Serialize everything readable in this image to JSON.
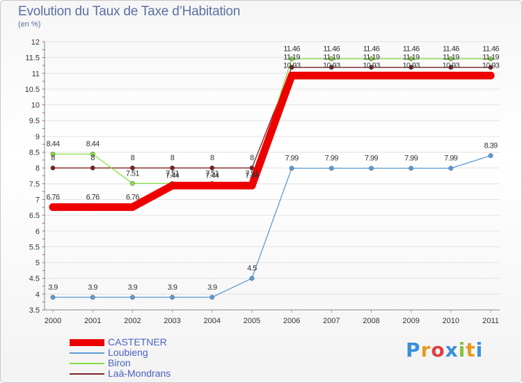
{
  "chart_data": {
    "type": "line",
    "title": "Evolution du Taux de Taxe d’Habitation",
    "subtitle": "(en %)",
    "xlabel": "",
    "ylabel": "",
    "ylim": [
      3.5,
      12
    ],
    "yticks": [
      "3.5",
      "4",
      "4.5",
      "5",
      "5.5",
      "6",
      "6.5",
      "7",
      "7.5",
      "8",
      "8.5",
      "9",
      "9.5",
      "10",
      "10.5",
      "11",
      "11.5",
      "12"
    ],
    "categories": [
      "2000",
      "2001",
      "2002",
      "2003",
      "2004",
      "2005",
      "2006",
      "2007",
      "2008",
      "2009",
      "2010",
      "2011"
    ],
    "series": [
      {
        "name": "Laà-Mondrans",
        "color": "#7a2020",
        "values": [
          8,
          8,
          8,
          8,
          8,
          8,
          11.19,
          11.19,
          11.19,
          11.19,
          11.19,
          11.19
        ],
        "labels": [
          "8",
          "8",
          "8",
          "8",
          "8",
          "8",
          "11.19",
          "11.19",
          "11.19",
          "11.19",
          "11.19",
          "11.19"
        ]
      },
      {
        "name": "Biron",
        "color": "#88dd44",
        "values": [
          8.44,
          8.44,
          7.51,
          7.51,
          7.51,
          7.51,
          11.46,
          11.46,
          11.46,
          11.46,
          11.46,
          11.46
        ],
        "labels": [
          "8.44",
          "8.44",
          "7.51",
          "7.51",
          "7.51",
          "7.51",
          "11.46",
          "11.46",
          "11.46",
          "11.46",
          "11.46",
          "11.46"
        ]
      },
      {
        "name": "Loubieng",
        "color": "#5b9bd5",
        "values": [
          3.9,
          3.9,
          3.9,
          3.9,
          3.9,
          4.5,
          7.99,
          7.99,
          7.99,
          7.99,
          7.99,
          8.39
        ],
        "labels": [
          "3.9",
          "3.9",
          "3.9",
          "3.9",
          "3.9",
          "4.5",
          "7.99",
          "7.99",
          "7.99",
          "7.99",
          "7.99",
          "8.39"
        ]
      },
      {
        "name": "CASTETNER",
        "color": "#ee0000",
        "values": [
          6.76,
          6.76,
          6.76,
          7.44,
          7.44,
          7.44,
          10.93,
          10.93,
          10.93,
          10.93,
          10.93,
          10.93
        ],
        "labels": [
          "6.76",
          "6.76",
          "6.76",
          "7.44",
          "7.44",
          "7.44",
          "10.93",
          "10.93",
          "10.93",
          "10.93",
          "10.93",
          "10.93"
        ]
      }
    ],
    "legend": [
      {
        "name": "CASTETNER",
        "color": "#ee0000"
      },
      {
        "name": "Loubieng",
        "color": "#5b9bd5"
      },
      {
        "name": "Biron",
        "color": "#88dd44"
      },
      {
        "name": "Laà-Mondrans",
        "color": "#7a2020"
      }
    ],
    "legend_position": "bottom-left"
  },
  "watermark": {
    "letters": [
      "P",
      "r",
      "o",
      "x",
      "i",
      "t",
      "i"
    ],
    "colors": [
      "#3a8fd8",
      "#e89a20",
      "#e04040",
      "#3a8fd8",
      "#88c040",
      "#e89a20",
      "#3a8fd8"
    ]
  }
}
